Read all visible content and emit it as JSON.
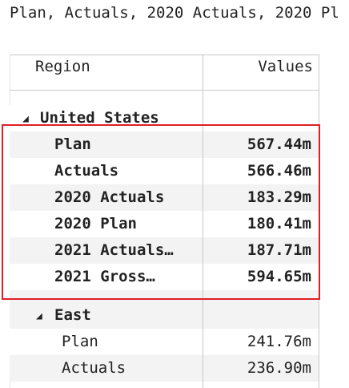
{
  "title": "Plan, Actuals, 2020 Actuals, 2020 Pl",
  "header": {
    "region": "Region",
    "values": "Values"
  },
  "groups": [
    {
      "name": "United States",
      "rows": [
        {
          "label": "Plan",
          "value": "567.44m"
        },
        {
          "label": "Actuals",
          "value": "566.46m"
        },
        {
          "label": "2020 Actuals",
          "value": "183.29m"
        },
        {
          "label": "2020 Plan",
          "value": "180.41m"
        },
        {
          "label": "2021 Actuals…",
          "value": "187.71m"
        },
        {
          "label": "2021 Gross…",
          "value": "594.65m"
        }
      ]
    },
    {
      "name": "East",
      "rows": [
        {
          "label": "Plan",
          "value": "241.76m"
        },
        {
          "label": "Actuals",
          "value": "236.90m"
        }
      ]
    }
  ]
}
